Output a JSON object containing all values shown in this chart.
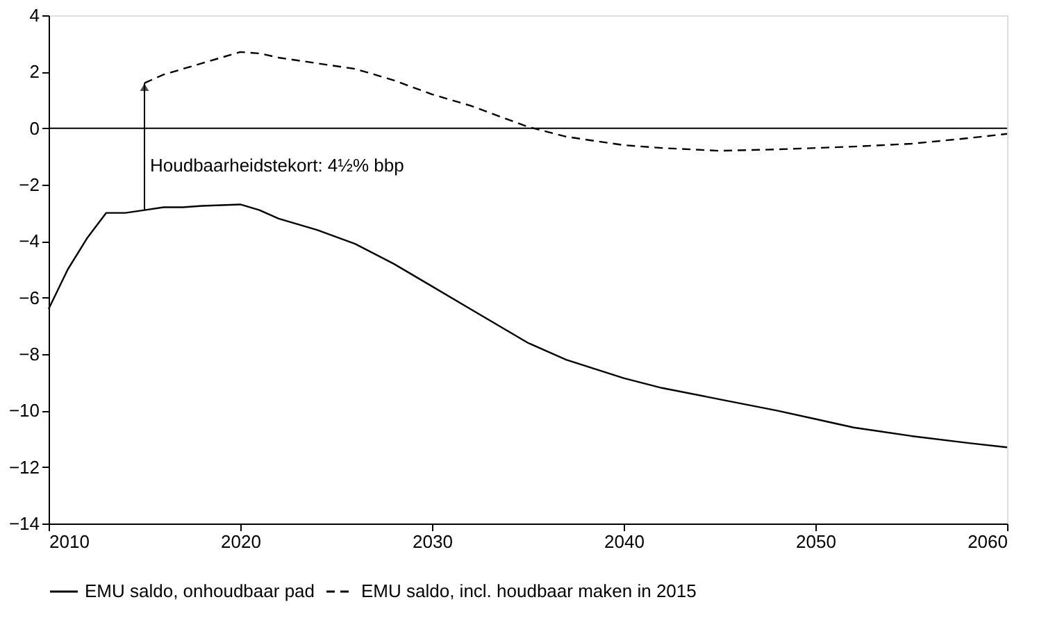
{
  "chart_data": {
    "type": "line",
    "x": [
      2010,
      2011,
      2012,
      2013,
      2014,
      2015,
      2016,
      2017,
      2018,
      2020,
      2021,
      2022,
      2024,
      2026,
      2028,
      2030,
      2032,
      2035,
      2037,
      2040,
      2042,
      2045,
      2048,
      2050,
      2052,
      2055,
      2058,
      2060
    ],
    "series": [
      {
        "name": "EMU saldo, onhoudbaar pad",
        "color": "#000000",
        "line_style": "solid",
        "values": [
          -6.4,
          -5.0,
          -3.9,
          -3.0,
          -3.0,
          -2.9,
          -2.8,
          -2.8,
          -2.75,
          -2.7,
          -2.9,
          -3.2,
          -3.6,
          -4.1,
          -4.8,
          -5.6,
          -6.4,
          -7.6,
          -8.2,
          -8.85,
          -9.2,
          -9.6,
          -10.0,
          -10.3,
          -10.6,
          -10.9,
          -11.15,
          -11.3
        ]
      },
      {
        "name": "EMU saldo, incl. houdbaar maken in 2015",
        "color": "#000000",
        "line_style": "dashed",
        "values": [
          null,
          null,
          null,
          null,
          null,
          1.6,
          1.9,
          2.1,
          2.3,
          2.7,
          2.65,
          2.5,
          2.3,
          2.1,
          1.7,
          1.2,
          0.8,
          0.05,
          -0.3,
          -0.6,
          -0.7,
          -0.8,
          -0.75,
          -0.7,
          -0.65,
          -0.55,
          -0.35,
          -0.2
        ]
      }
    ],
    "xlim": [
      2010,
      2060
    ],
    "xticks": [
      2010,
      2020,
      2030,
      2040,
      2050,
      2060
    ],
    "ylim": [
      -14,
      4
    ],
    "yticks": [
      -14,
      -12,
      -10,
      -8,
      -6,
      -4,
      -2,
      0,
      2,
      4
    ],
    "ref_lines": [
      {
        "axis": "y",
        "value": 0,
        "color": "#000000"
      }
    ],
    "annotations": [
      "Houdbaarheidstekort: 4½% bbp"
    ],
    "grid": false,
    "legend": "bottom",
    "marker": "none"
  }
}
